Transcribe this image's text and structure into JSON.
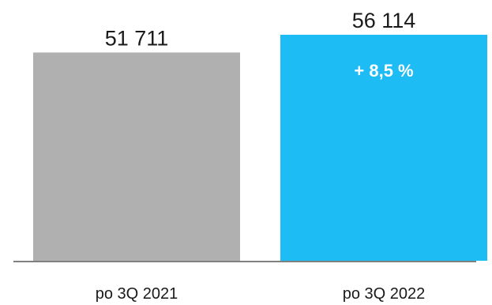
{
  "chart_data": {
    "type": "bar",
    "categories": [
      "po 3Q 2021",
      "po 3Q 2022"
    ],
    "values": [
      51711,
      56114
    ],
    "value_labels": [
      "51 711",
      "56 114"
    ],
    "bar_colors": [
      "#b0b0b0",
      "#1ebcf4"
    ],
    "annotation": {
      "bar_index": 1,
      "text": "+ 8,5 %",
      "color": "#ffffff"
    },
    "title": "",
    "xlabel": "",
    "ylabel": "",
    "ylim": [
      0,
      56114
    ],
    "grid": false,
    "legend": "none",
    "axis_color": "#808080"
  }
}
